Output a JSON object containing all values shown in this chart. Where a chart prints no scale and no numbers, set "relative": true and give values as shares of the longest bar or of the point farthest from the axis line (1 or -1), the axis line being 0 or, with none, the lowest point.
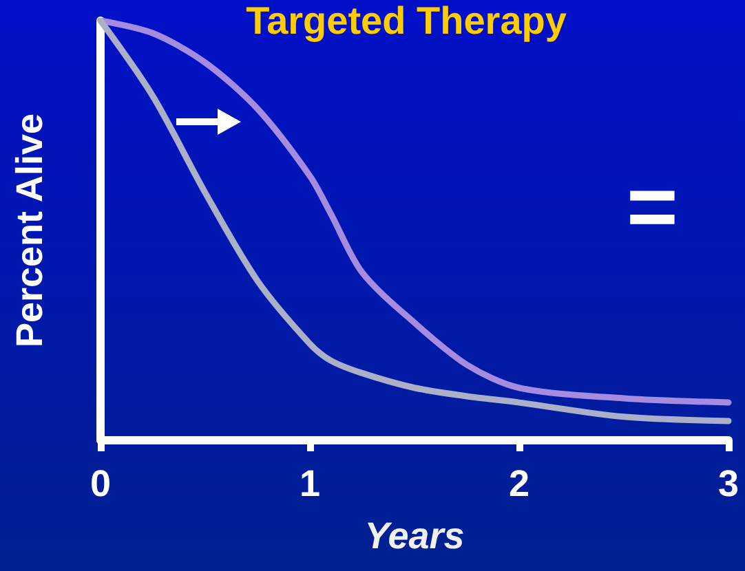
{
  "chart_data": {
    "type": "line",
    "title": "Targeted Therapy",
    "xlabel": "Years",
    "ylabel": "Percent Alive",
    "relative": true,
    "x": [
      0,
      0.25,
      0.5,
      0.75,
      1,
      1.1,
      1.25,
      1.5,
      1.75,
      2,
      2.5,
      3
    ],
    "series": [
      {
        "color": "#a58ce0",
        "values": [
          1,
          0.97,
          0.9,
          0.79,
          0.63,
          0.54,
          0.4,
          0.28,
          0.18,
          0.125,
          0.1,
          0.09
        ]
      },
      {
        "color": "#aab0c8",
        "values": [
          1,
          0.82,
          0.59,
          0.38,
          0.23,
          0.19,
          0.16,
          0.125,
          0.105,
          0.09,
          0.056,
          0.046
        ]
      }
    ],
    "xlim": [
      0,
      3
    ],
    "xticks": [
      0,
      1,
      2,
      3
    ],
    "grid": false,
    "marker": "none",
    "line_style": "solid",
    "annotations": [
      "="
    ]
  }
}
